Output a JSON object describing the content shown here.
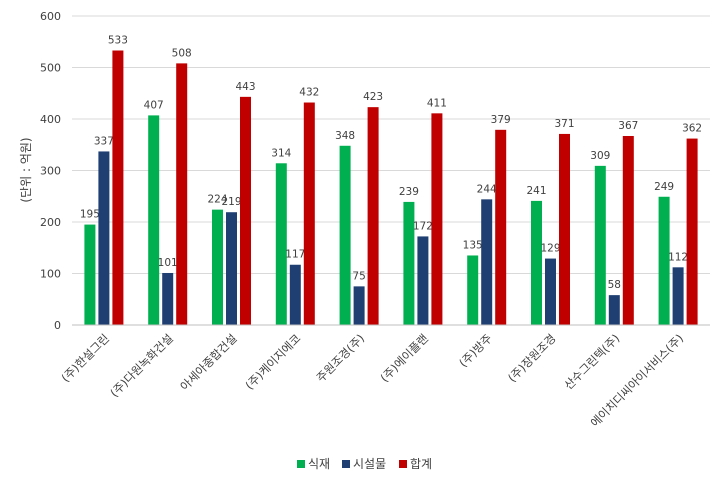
{
  "chart_data": {
    "type": "bar",
    "title": "",
    "xlabel": "",
    "ylabel": "(단위 : 억원)",
    "ylim": [
      0,
      600
    ],
    "yticks": [
      0,
      100,
      200,
      300,
      400,
      500,
      600
    ],
    "grid": true,
    "legend_position": "bottom",
    "categories": [
      "(주)한설그린",
      "(주)다원녹화건설",
      "아세아종합건설",
      "(주)케이지에코",
      "주원조경(주)",
      "(주)에이플랜",
      "(주)방주",
      "(주)장원조경",
      "산수그린텍(주)",
      "에이치디씨아이서비스(주)"
    ],
    "series": [
      {
        "name": "식재",
        "color": "#00b050",
        "values": [
          195,
          407,
          224,
          314,
          348,
          239,
          135,
          241,
          309,
          249
        ]
      },
      {
        "name": "시설물",
        "color": "#1f3f73",
        "values": [
          337,
          101,
          219,
          117,
          75,
          172,
          244,
          129,
          58,
          112
        ]
      },
      {
        "name": "합계",
        "color": "#c00000",
        "values": [
          533,
          508,
          443,
          432,
          423,
          411,
          379,
          371,
          367,
          362
        ]
      }
    ]
  }
}
